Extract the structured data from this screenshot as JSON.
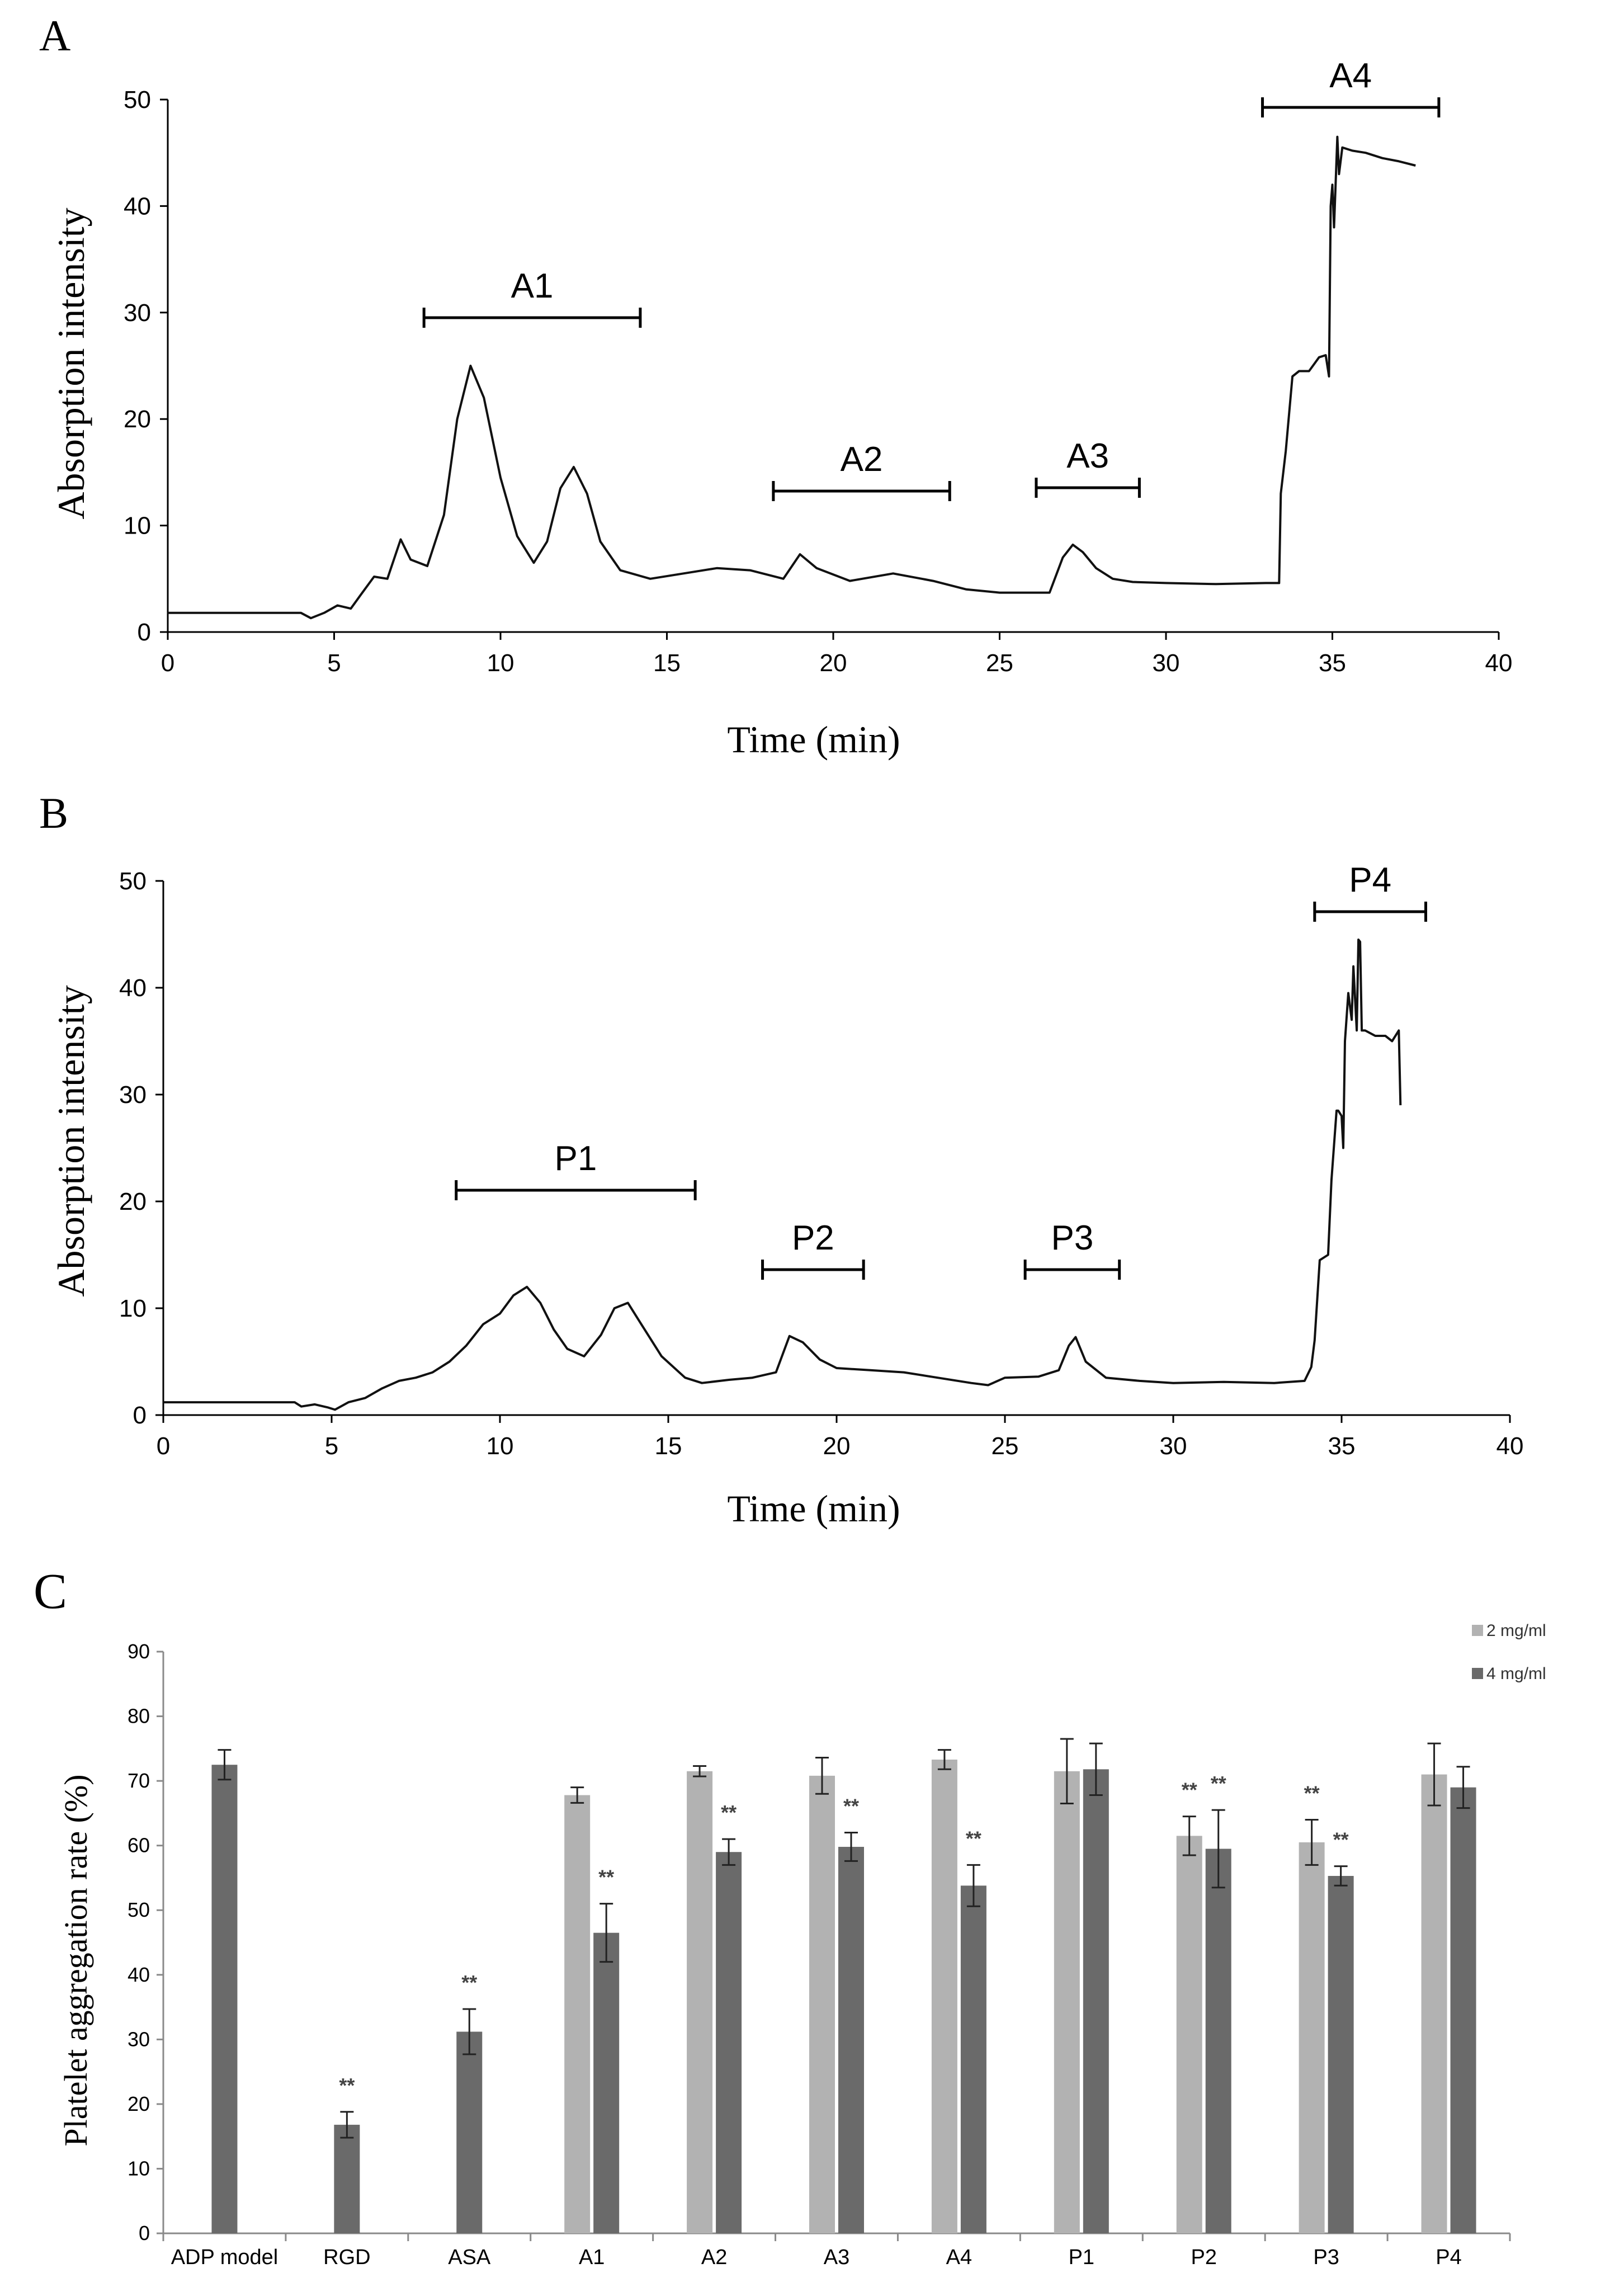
{
  "chart_data": [
    {
      "panel": "A",
      "type": "line",
      "xlabel": "Time (min)",
      "ylabel": "Absorption intensity",
      "xlim": [
        0,
        40
      ],
      "ylim": [
        0,
        50
      ],
      "xticks": [
        0,
        5,
        10,
        15,
        20,
        25,
        30,
        35,
        40
      ],
      "yticks": [
        0,
        10,
        20,
        30,
        40,
        50
      ],
      "series": [
        {
          "name": "A chromatogram",
          "x": [
            0,
            2,
            4.0,
            4.3,
            4.7,
            5.1,
            5.5,
            5.8,
            6.2,
            6.6,
            7.0,
            7.3,
            7.8,
            8.3,
            8.7,
            9.1,
            9.5,
            10.0,
            10.5,
            11.0,
            11.4,
            11.8,
            12.2,
            12.6,
            13.0,
            13.6,
            14.5,
            15.5,
            16.5,
            17.5,
            18.5,
            19.0,
            19.5,
            20.5,
            21.8,
            23.0,
            24.0,
            25.0,
            26.5,
            26.9,
            27.2,
            27.5,
            27.9,
            28.4,
            29.0,
            30.0,
            31.5,
            33.0,
            33.4,
            33.45,
            33.6,
            33.8,
            34.0,
            34.3,
            34.6,
            34.8,
            34.9,
            34.95,
            35.0,
            35.05,
            35.15,
            35.2,
            35.3,
            35.6,
            36.0,
            36.5,
            37.0,
            37.5
          ],
          "y": [
            1.8,
            1.8,
            1.8,
            1.3,
            1.8,
            2.5,
            2.2,
            3.5,
            5.2,
            5.0,
            8.7,
            6.8,
            6.2,
            11.0,
            20.0,
            25.0,
            22.0,
            14.5,
            9.0,
            6.5,
            8.5,
            13.5,
            15.5,
            13.0,
            8.5,
            5.8,
            5.0,
            5.5,
            6.0,
            5.8,
            5.0,
            7.3,
            6.0,
            4.8,
            5.5,
            4.8,
            4.0,
            3.7,
            3.7,
            7.0,
            8.2,
            7.5,
            6.0,
            5.0,
            4.7,
            4.6,
            4.5,
            4.6,
            4.6,
            13.0,
            17.0,
            24.0,
            24.5,
            24.5,
            25.8,
            26.0,
            24.0,
            40.0,
            42.0,
            38.0,
            46.5,
            43.0,
            45.5,
            45.2,
            45.0,
            44.5,
            44.2,
            43.8
          ]
        }
      ],
      "fractions": [
        {
          "label": "A1",
          "start": 7.7,
          "end": 14.2
        },
        {
          "label": "A2",
          "start": 18.2,
          "end": 23.5
        },
        {
          "label": "A3",
          "start": 26.1,
          "end": 29.2
        },
        {
          "label": "A4",
          "start": 32.9,
          "end": 38.2
        }
      ]
    },
    {
      "panel": "B",
      "type": "line",
      "xlabel": "Time (min)",
      "ylabel": "Absorption intensity",
      "xlim": [
        0,
        40
      ],
      "ylim": [
        0,
        50
      ],
      "xticks": [
        0,
        5,
        10,
        15,
        20,
        25,
        30,
        35,
        40
      ],
      "yticks": [
        0,
        10,
        20,
        30,
        40,
        50
      ],
      "series": [
        {
          "name": "B chromatogram",
          "x": [
            0,
            2,
            3.9,
            4.1,
            4.5,
            4.9,
            5.1,
            5.5,
            6.0,
            6.5,
            7.0,
            7.5,
            8.0,
            8.5,
            9.0,
            9.5,
            10.0,
            10.4,
            10.8,
            11.2,
            11.6,
            12.0,
            12.5,
            13.0,
            13.4,
            13.8,
            14.2,
            14.8,
            15.5,
            16.0,
            16.8,
            17.5,
            18.2,
            18.6,
            19.0,
            19.5,
            20.0,
            21.0,
            22.0,
            23.0,
            24.0,
            24.5,
            25.0,
            26.0,
            26.6,
            26.9,
            27.1,
            27.4,
            28.0,
            29.0,
            30.0,
            31.5,
            33.0,
            33.9,
            34.1,
            34.2,
            34.35,
            34.6,
            34.7,
            34.85,
            34.9,
            35.0,
            35.05,
            35.1,
            35.2,
            35.3,
            35.35,
            35.45,
            35.5,
            35.55,
            35.6,
            35.7,
            36.0,
            36.3,
            36.5,
            36.7,
            36.75
          ],
          "y": [
            1.2,
            1.2,
            1.2,
            0.8,
            1.0,
            0.7,
            0.5,
            1.2,
            1.6,
            2.5,
            3.2,
            3.5,
            4.0,
            5.0,
            6.5,
            8.5,
            9.5,
            11.2,
            12.0,
            10.5,
            8.0,
            6.2,
            5.5,
            7.5,
            10.0,
            10.5,
            8.5,
            5.5,
            3.5,
            3.0,
            3.3,
            3.5,
            4.0,
            7.4,
            6.8,
            5.2,
            4.4,
            4.2,
            4.0,
            3.5,
            3.0,
            2.8,
            3.5,
            3.6,
            4.2,
            6.5,
            7.3,
            5.0,
            3.5,
            3.2,
            3.0,
            3.1,
            3.0,
            3.2,
            4.5,
            7.0,
            14.5,
            15.0,
            22.0,
            28.5,
            28.5,
            28.0,
            25.0,
            35.0,
            39.5,
            37.0,
            42.0,
            36.0,
            44.5,
            44.3,
            36.0,
            36.0,
            35.5,
            35.5,
            35.0,
            36.0,
            29.0
          ]
        }
      ],
      "fractions": [
        {
          "label": "P1",
          "start": 8.7,
          "end": 15.8
        },
        {
          "label": "P2",
          "start": 17.8,
          "end": 20.8
        },
        {
          "label": "P3",
          "start": 25.6,
          "end": 28.4
        },
        {
          "label": "P4",
          "start": 34.2,
          "end": 37.5
        }
      ]
    },
    {
      "panel": "C",
      "type": "bar",
      "ylabel": "Platelet aggregation rate (%)",
      "ylim": [
        0,
        90
      ],
      "yticks": [
        0,
        10,
        20,
        30,
        40,
        50,
        60,
        70,
        80,
        90
      ],
      "legend_position": "top-right",
      "categories": [
        "ADP model",
        "RGD",
        "ASA",
        "A1",
        "A2",
        "A3",
        "A4",
        "P1",
        "P2",
        "P3",
        "P4"
      ],
      "series": [
        {
          "name": "2 mg/ml",
          "color": "#b2b2b2",
          "values": [
            null,
            null,
            null,
            67.8,
            71.5,
            70.8,
            73.3,
            71.5,
            61.5,
            60.5,
            71.0
          ],
          "errors": [
            null,
            null,
            null,
            1.2,
            0.8,
            2.8,
            1.5,
            5.0,
            3.0,
            3.5,
            4.8
          ],
          "significance": [
            "",
            "",
            "",
            "",
            "",
            "",
            "",
            "",
            "**",
            "**",
            ""
          ]
        },
        {
          "name": "4 mg/ml",
          "color": "#6a6a6a",
          "values": [
            72.5,
            16.8,
            31.2,
            46.5,
            59.0,
            59.8,
            53.8,
            71.8,
            59.5,
            55.3,
            69.0
          ],
          "errors": [
            2.3,
            2.0,
            3.5,
            4.5,
            2.0,
            2.2,
            3.2,
            4.0,
            6.0,
            1.5,
            3.2
          ],
          "significance": [
            "",
            "**",
            "**",
            "**",
            "**",
            "**",
            "**",
            "",
            "**",
            "**",
            ""
          ]
        }
      ]
    }
  ],
  "panel_labels": [
    "A",
    "B",
    "C"
  ]
}
